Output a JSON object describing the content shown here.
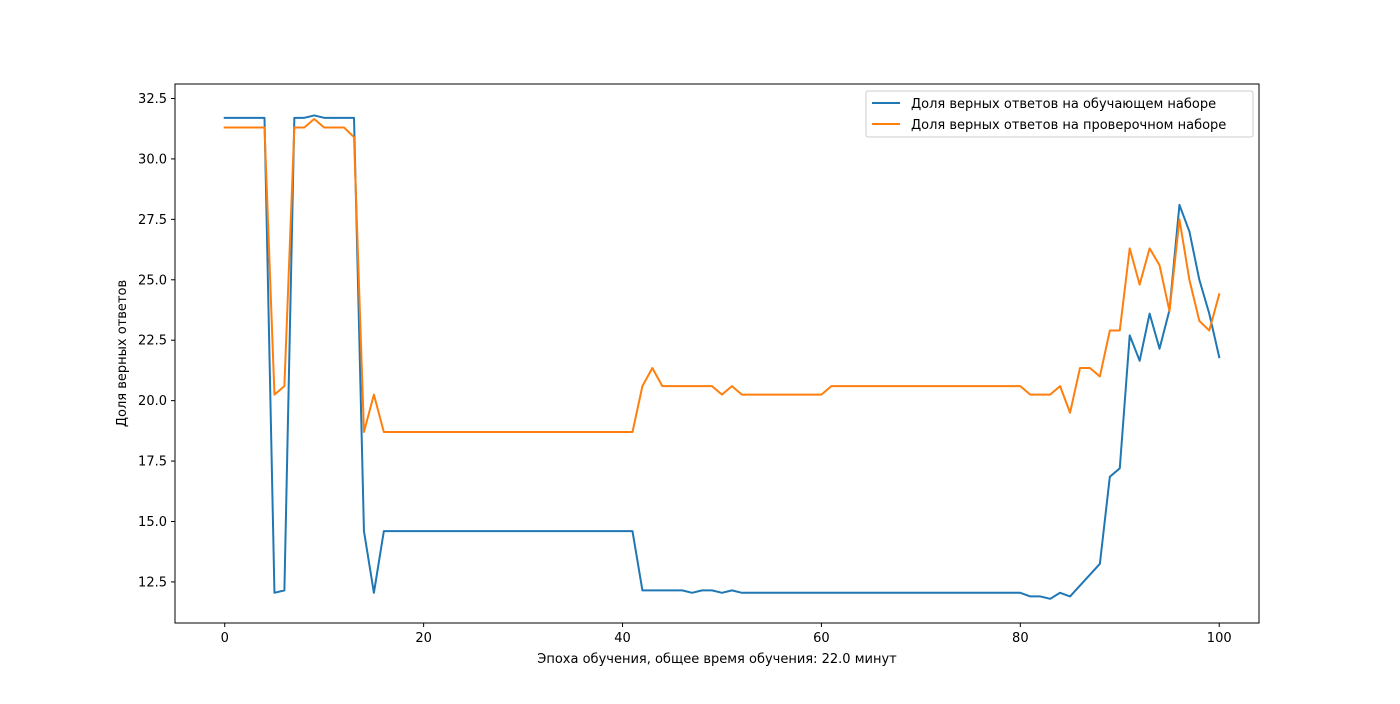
{
  "chart_data": {
    "type": "line",
    "xlabel": "Эпоха обучения, общее время обучения: 22.0 минут",
    "ylabel": "Доля верных ответов",
    "xlim": [
      -5,
      104
    ],
    "ylim": [
      10.8,
      33.1
    ],
    "x_ticks": [
      0,
      20,
      40,
      60,
      80,
      100
    ],
    "y_ticks": [
      12.5,
      15.0,
      17.5,
      20.0,
      22.5,
      25.0,
      27.5,
      30.0,
      32.5
    ],
    "x_tick_labels": [
      "0",
      "20",
      "40",
      "60",
      "80",
      "100"
    ],
    "y_tick_labels": [
      "12.5",
      "15.0",
      "17.5",
      "20.0",
      "22.5",
      "25.0",
      "27.5",
      "30.0",
      "32.5"
    ],
    "legend_position": "upper right",
    "grid": false,
    "series": [
      {
        "name": "Доля верных ответов на обучающем наборе",
        "color": "#1f77b4",
        "values": [
          31.7,
          31.7,
          31.7,
          31.7,
          31.7,
          12.05,
          12.15,
          31.7,
          31.7,
          31.8,
          31.7,
          31.7,
          31.7,
          31.7,
          14.6,
          12.05,
          14.6,
          14.6,
          14.6,
          14.6,
          14.6,
          14.6,
          14.6,
          14.6,
          14.6,
          14.6,
          14.6,
          14.6,
          14.6,
          14.6,
          14.6,
          14.6,
          14.6,
          14.6,
          14.6,
          14.6,
          14.6,
          14.6,
          14.6,
          14.6,
          14.6,
          14.6,
          12.15,
          12.15,
          12.15,
          12.15,
          12.15,
          12.05,
          12.15,
          12.15,
          12.05,
          12.15,
          12.05,
          12.05,
          12.05,
          12.05,
          12.05,
          12.05,
          12.05,
          12.05,
          12.05,
          12.05,
          12.05,
          12.05,
          12.05,
          12.05,
          12.05,
          12.05,
          12.05,
          12.05,
          12.05,
          12.05,
          12.05,
          12.05,
          12.05,
          12.05,
          12.05,
          12.05,
          12.05,
          12.05,
          12.05,
          11.9,
          11.9,
          11.8,
          12.05,
          11.9,
          12.35,
          12.8,
          13.25,
          16.85,
          17.2,
          22.7,
          21.65,
          23.6,
          22.15,
          23.75,
          28.1,
          27.0,
          25.0,
          23.6,
          21.8
        ]
      },
      {
        "name": "Доля верных ответов на проверочном наборе",
        "color": "#ff7f0e",
        "values": [
          31.3,
          31.3,
          31.3,
          31.3,
          31.3,
          20.25,
          20.6,
          31.3,
          31.3,
          31.65,
          31.3,
          31.3,
          31.3,
          30.9,
          18.7,
          20.25,
          18.7,
          18.7,
          18.7,
          18.7,
          18.7,
          18.7,
          18.7,
          18.7,
          18.7,
          18.7,
          18.7,
          18.7,
          18.7,
          18.7,
          18.7,
          18.7,
          18.7,
          18.7,
          18.7,
          18.7,
          18.7,
          18.7,
          18.7,
          18.7,
          18.7,
          18.7,
          20.6,
          21.35,
          20.6,
          20.6,
          20.6,
          20.6,
          20.6,
          20.6,
          20.25,
          20.6,
          20.25,
          20.25,
          20.25,
          20.25,
          20.25,
          20.25,
          20.25,
          20.25,
          20.25,
          20.6,
          20.6,
          20.6,
          20.6,
          20.6,
          20.6,
          20.6,
          20.6,
          20.6,
          20.6,
          20.6,
          20.6,
          20.6,
          20.6,
          20.6,
          20.6,
          20.6,
          20.6,
          20.6,
          20.6,
          20.25,
          20.25,
          20.25,
          20.6,
          19.5,
          21.35,
          21.35,
          21.0,
          22.9,
          22.9,
          26.3,
          24.8,
          26.3,
          25.6,
          23.7,
          27.5,
          25.0,
          23.3,
          22.9,
          24.4
        ]
      }
    ]
  }
}
